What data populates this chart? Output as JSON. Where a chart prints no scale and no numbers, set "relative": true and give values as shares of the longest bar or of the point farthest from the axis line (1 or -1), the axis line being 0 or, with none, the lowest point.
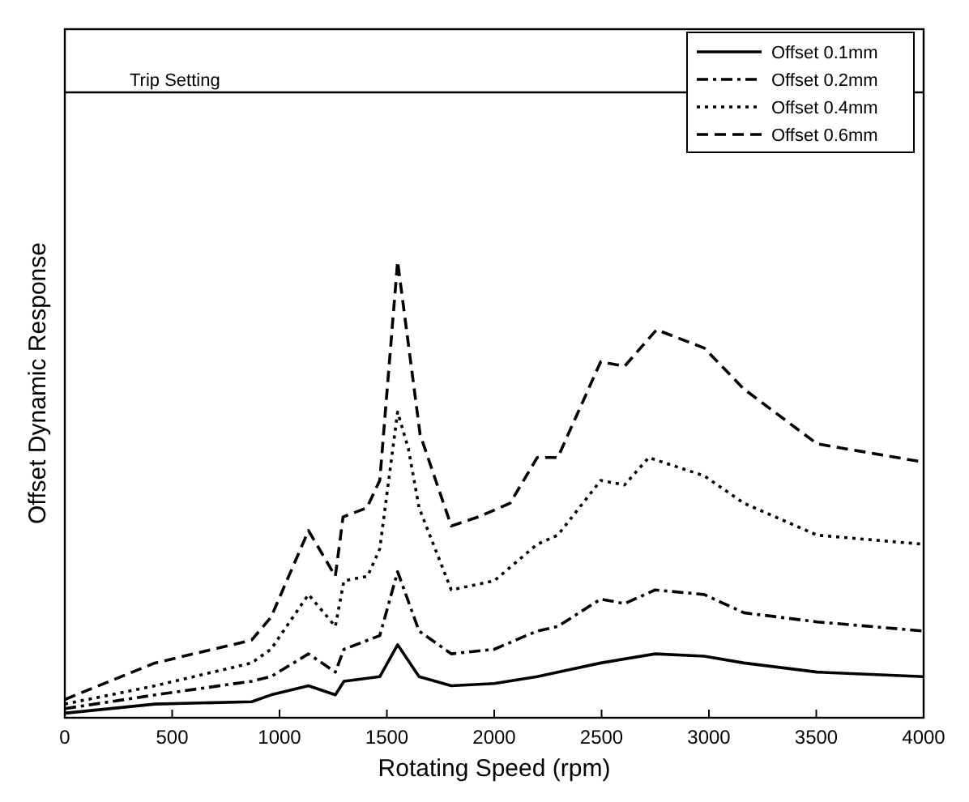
{
  "chart_data": {
    "type": "line",
    "xlabel": "Rotating Speed (rpm)",
    "ylabel": "Offset Dynamic Response",
    "relative": true,
    "xlim": [
      0,
      4000
    ],
    "xticks": [
      0,
      500,
      1000,
      1500,
      2000,
      2500,
      3000,
      3500,
      4000
    ],
    "tick_labels": "x",
    "grid": false,
    "legend": "top right",
    "ref_lines": [
      {
        "axis": "y",
        "value": 1.37,
        "label": "Trip Setting",
        "color": "#000000",
        "line_style": "solid"
      }
    ],
    "series": [
      {
        "name": "Offset 0.1mm",
        "color": "#000000",
        "line_style": "solid",
        "x": [
          0,
          420,
          870,
          960,
          1135,
          1260,
          1300,
          1467,
          1550,
          1650,
          1800,
          2000,
          2200,
          2296,
          2496,
          2750,
          2978,
          3163,
          3504,
          4000
        ],
        "values": [
          0.01,
          0.03,
          0.035,
          0.05,
          0.07,
          0.05,
          0.08,
          0.09,
          0.16,
          0.09,
          0.07,
          0.075,
          0.09,
          0.1,
          0.12,
          0.14,
          0.135,
          0.12,
          0.1,
          0.09
        ]
      },
      {
        "name": "Offset 0.2mm",
        "color": "#000000",
        "line_style": "dashdot",
        "x": [
          0,
          420,
          870,
          960,
          1135,
          1260,
          1300,
          1467,
          1550,
          1650,
          1800,
          2000,
          2200,
          2296,
          2496,
          2607,
          2750,
          2978,
          3163,
          3504,
          4000
        ],
        "values": [
          0.02,
          0.05,
          0.08,
          0.09,
          0.14,
          0.1,
          0.15,
          0.18,
          0.32,
          0.19,
          0.14,
          0.15,
          0.19,
          0.2,
          0.26,
          0.25,
          0.28,
          0.27,
          0.23,
          0.21,
          0.19
        ]
      },
      {
        "name": "Offset 0.4mm",
        "color": "#000000",
        "line_style": "dotted",
        "x": [
          0,
          420,
          870,
          960,
          1135,
          1260,
          1300,
          1410,
          1467,
          1550,
          1600,
          1650,
          1800,
          2000,
          2200,
          2296,
          2496,
          2607,
          2720,
          2978,
          3163,
          3504,
          4000
        ],
        "values": [
          0.03,
          0.07,
          0.12,
          0.15,
          0.27,
          0.2,
          0.3,
          0.31,
          0.37,
          0.67,
          0.59,
          0.46,
          0.28,
          0.3,
          0.38,
          0.4,
          0.52,
          0.51,
          0.57,
          0.53,
          0.47,
          0.4,
          0.38
        ]
      },
      {
        "name": "Offset 0.6mm",
        "color": "#000000",
        "line_style": "dashed",
        "x": [
          0,
          420,
          870,
          960,
          1135,
          1260,
          1296,
          1407,
          1467,
          1550,
          1655,
          1800,
          1926,
          2074,
          2200,
          2296,
          2496,
          2607,
          2756,
          2978,
          3163,
          3504,
          4000
        ],
        "values": [
          0.04,
          0.12,
          0.17,
          0.22,
          0.41,
          0.31,
          0.44,
          0.46,
          0.52,
          1,
          0.62,
          0.42,
          0.44,
          0.47,
          0.57,
          0.57,
          0.78,
          0.77,
          0.85,
          0.81,
          0.72,
          0.6,
          0.56
        ]
      }
    ]
  }
}
